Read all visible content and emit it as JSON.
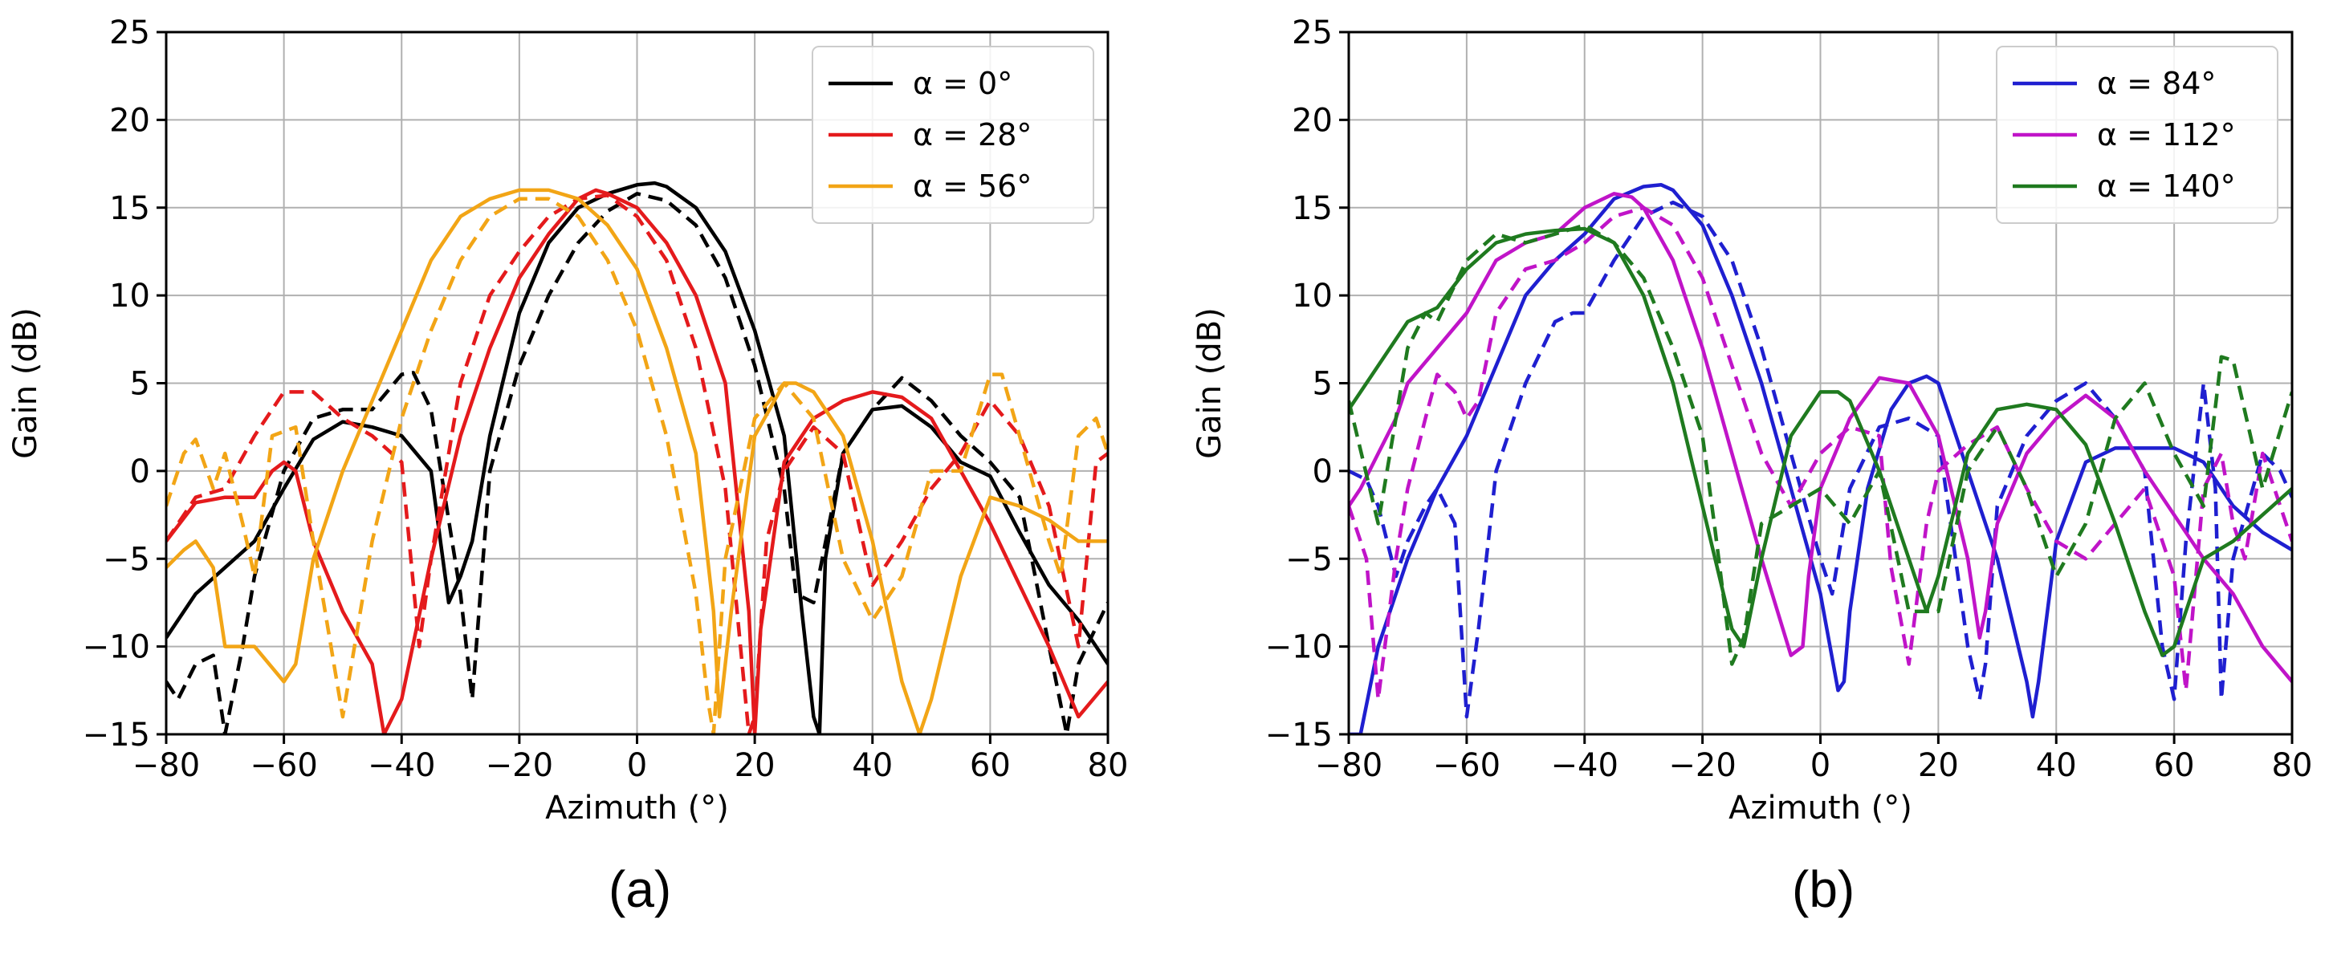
{
  "figure": {
    "panel_labels": [
      "(a)",
      "(b)"
    ]
  },
  "chart_data": [
    {
      "type": "line",
      "panel": "(a)",
      "title": "",
      "xlabel": "Azimuth (°)",
      "ylabel": "Gain (dB)",
      "xlim": [
        -80,
        80
      ],
      "ylim": [
        -15,
        25
      ],
      "xticks": [
        -80,
        -60,
        -40,
        -20,
        0,
        20,
        40,
        60,
        80
      ],
      "yticks": [
        -15,
        -10,
        -5,
        0,
        5,
        10,
        15,
        20,
        25
      ],
      "xtick_labels": [
        "−80",
        "−60",
        "−40",
        "−20",
        "0",
        "20",
        "40",
        "60",
        "80"
      ],
      "ytick_labels": [
        "−15",
        "−10",
        "−5",
        "0",
        "5",
        "10",
        "15",
        "20",
        "25"
      ],
      "grid": true,
      "legend_position": "top-right",
      "legend": [
        "α = 0°",
        "α = 28°",
        "α = 56°"
      ],
      "series": [
        {
          "name": "α = 0°",
          "style": "solid",
          "color": "#000000",
          "x": [
            -80,
            -75,
            -70,
            -65,
            -60,
            -55,
            -50,
            -45,
            -40,
            -35,
            -32,
            -30,
            -28,
            -25,
            -20,
            -15,
            -10,
            -5,
            0,
            3,
            5,
            10,
            15,
            20,
            25,
            28,
            30,
            31,
            32,
            35,
            40,
            45,
            50,
            55,
            60,
            65,
            70,
            75,
            80
          ],
          "y": [
            -9.5,
            -7,
            -5.5,
            -4,
            -1,
            1.8,
            2.8,
            2.5,
            2,
            0,
            -7.5,
            -6,
            -4,
            2,
            9,
            13,
            15,
            15.8,
            16.3,
            16.4,
            16.2,
            15,
            12.5,
            8,
            2,
            -8,
            -14,
            -15,
            -5,
            1,
            3.5,
            3.7,
            2.5,
            0.5,
            -0.3,
            -3.5,
            -6.5,
            -8.5,
            -11
          ]
        },
        {
          "name": "α = 0° (dashed)",
          "style": "dashed",
          "color": "#000000",
          "x": [
            -80,
            -78,
            -75,
            -72,
            -70,
            -67,
            -65,
            -60,
            -55,
            -50,
            -45,
            -40,
            -38,
            -35,
            -30,
            -28,
            -25,
            -20,
            -15,
            -10,
            -5,
            0,
            5,
            10,
            15,
            20,
            25,
            27,
            30,
            35,
            40,
            45,
            50,
            55,
            60,
            65,
            70,
            73,
            75,
            80
          ],
          "y": [
            -12,
            -13,
            -11,
            -10.5,
            -15,
            -10,
            -6,
            0,
            3,
            3.5,
            3.5,
            5.5,
            5.6,
            3.5,
            -7,
            -13,
            0,
            6,
            10,
            13,
            14.8,
            15.8,
            15.4,
            14,
            11,
            6,
            -1,
            -7,
            -7.5,
            1,
            3.5,
            5.3,
            4,
            2,
            0.5,
            -1.5,
            -10,
            -15,
            -11,
            -7.5
          ]
        },
        {
          "name": "α = 28°",
          "style": "solid",
          "color": "#e41a1c",
          "x": [
            -80,
            -75,
            -70,
            -65,
            -62,
            -60,
            -58,
            -55,
            -50,
            -45,
            -43,
            -40,
            -35,
            -30,
            -25,
            -20,
            -15,
            -10,
            -7,
            -5,
            0,
            5,
            10,
            15,
            19,
            20,
            21,
            25,
            30,
            35,
            40,
            45,
            50,
            55,
            60,
            65,
            70,
            75,
            80
          ],
          "y": [
            -4,
            -1.8,
            -1.5,
            -1.5,
            0,
            0.5,
            0,
            -4,
            -8,
            -11,
            -15,
            -13,
            -5,
            2,
            7,
            11,
            13.5,
            15.5,
            16,
            15.8,
            15,
            13,
            10,
            5,
            -8,
            -15,
            -9,
            0.5,
            3,
            4,
            4.5,
            4.2,
            3,
            0,
            -3,
            -6.5,
            -10,
            -14,
            -12
          ]
        },
        {
          "name": "α = 28° (dashed)",
          "style": "dashed",
          "color": "#e41a1c",
          "x": [
            -80,
            -75,
            -70,
            -65,
            -60,
            -55,
            -50,
            -45,
            -40,
            -37,
            -35,
            -30,
            -25,
            -20,
            -15,
            -10,
            -5,
            0,
            5,
            10,
            15,
            19,
            20,
            22,
            25,
            30,
            35,
            40,
            45,
            50,
            55,
            60,
            65,
            70,
            75,
            78,
            80
          ],
          "y": [
            -4,
            -1.5,
            -1,
            2,
            4.5,
            4.5,
            3,
            2,
            0.5,
            -10,
            -5,
            5,
            10,
            12.5,
            14.5,
            15.5,
            15.7,
            14.5,
            12,
            7,
            -1,
            -15,
            -14,
            -4,
            0,
            2.5,
            1,
            -6.5,
            -4,
            -1,
            1,
            4,
            2,
            -2,
            -10,
            0.5,
            1
          ]
        },
        {
          "name": "α = 56°",
          "style": "solid",
          "color": "#f2a516",
          "x": [
            -80,
            -77,
            -75,
            -72,
            -70,
            -65,
            -60,
            -58,
            -55,
            -50,
            -45,
            -40,
            -35,
            -30,
            -25,
            -20,
            -15,
            -10,
            -5,
            0,
            5,
            10,
            13,
            14,
            16,
            20,
            25,
            27,
            30,
            35,
            40,
            45,
            48,
            50,
            55,
            60,
            65,
            70,
            75,
            80
          ],
          "y": [
            -5.5,
            -4.5,
            -4,
            -5.5,
            -10,
            -10,
            -12,
            -11,
            -5,
            0,
            4,
            8,
            12,
            14.5,
            15.5,
            16,
            16,
            15.5,
            14,
            11.5,
            7,
            1,
            -8,
            -14,
            -8,
            2,
            5,
            5,
            4.5,
            2,
            -4,
            -12,
            -15,
            -13,
            -6,
            -1.5,
            -2,
            -2.8,
            -4,
            -4
          ]
        },
        {
          "name": "α = 56° (dashed)",
          "style": "dashed",
          "color": "#f2a516",
          "x": [
            -80,
            -77,
            -75,
            -72,
            -70,
            -67,
            -65,
            -62,
            -58,
            -55,
            -52,
            -50,
            -45,
            -40,
            -35,
            -30,
            -25,
            -20,
            -15,
            -10,
            -5,
            0,
            5,
            10,
            12,
            13,
            15,
            20,
            25,
            30,
            35,
            40,
            45,
            50,
            55,
            60,
            62,
            65,
            70,
            72,
            75,
            78,
            80
          ],
          "y": [
            -2,
            1,
            1.8,
            -1,
            1,
            -3,
            -6,
            2,
            2.5,
            -4,
            -10,
            -14,
            -4,
            3,
            8,
            12,
            14.5,
            15.5,
            15.5,
            14.5,
            12,
            8,
            2,
            -7,
            -13,
            -15,
            -5,
            3,
            5,
            3,
            -5,
            -8.5,
            -6,
            0,
            0,
            5.5,
            5.5,
            2,
            -4,
            -6,
            2,
            3,
            1
          ]
        }
      ]
    },
    {
      "type": "line",
      "panel": "(b)",
      "title": "",
      "xlabel": "Azimuth (°)",
      "ylabel": "Gain (dB)",
      "xlim": [
        -80,
        80
      ],
      "ylim": [
        -15,
        25
      ],
      "xticks": [
        -80,
        -60,
        -40,
        -20,
        0,
        20,
        40,
        60,
        80
      ],
      "yticks": [
        -15,
        -10,
        -5,
        0,
        5,
        10,
        15,
        20,
        25
      ],
      "xtick_labels": [
        "−80",
        "−60",
        "−40",
        "−20",
        "0",
        "20",
        "40",
        "60",
        "80"
      ],
      "ytick_labels": [
        "−15",
        "−10",
        "−5",
        "0",
        "5",
        "10",
        "15",
        "20",
        "25"
      ],
      "grid": true,
      "legend_position": "top-right",
      "legend": [
        "α = 84°",
        "α = 112°",
        "α = 140°"
      ],
      "series": [
        {
          "name": "α = 84°",
          "style": "solid",
          "color": "#1f1fd0",
          "x": [
            -80,
            -78,
            -75,
            -70,
            -65,
            -60,
            -55,
            -50,
            -45,
            -40,
            -35,
            -30,
            -27,
            -25,
            -20,
            -15,
            -10,
            -5,
            0,
            3,
            4,
            5,
            8,
            12,
            15,
            18,
            20,
            25,
            30,
            35,
            36,
            37,
            40,
            45,
            50,
            55,
            60,
            65,
            70,
            75,
            80
          ],
          "y": [
            -15,
            -15,
            -10,
            -5,
            -1,
            2,
            6,
            10,
            12,
            13.5,
            15.5,
            16.2,
            16.3,
            16,
            14,
            10,
            5,
            -1,
            -7,
            -12.5,
            -12,
            -8,
            -1,
            3.5,
            5,
            5.4,
            5,
            0,
            -5,
            -12,
            -14,
            -12,
            -4,
            0.5,
            1.3,
            1.3,
            1.3,
            0.5,
            -2,
            -3.5,
            -4.5
          ]
        },
        {
          "name": "α = 84° (dashed)",
          "style": "dashed",
          "color": "#1f1fd0",
          "x": [
            -80,
            -77,
            -75,
            -72,
            -70,
            -67,
            -65,
            -62,
            -60,
            -58,
            -55,
            -50,
            -45,
            -42,
            -40,
            -35,
            -30,
            -25,
            -20,
            -15,
            -10,
            -5,
            0,
            2,
            5,
            10,
            15,
            20,
            25,
            27,
            28,
            30,
            35,
            40,
            45,
            50,
            55,
            58,
            60,
            62,
            65,
            67,
            68,
            70,
            75,
            78,
            80
          ],
          "y": [
            0,
            -0.5,
            -2,
            -6,
            -4,
            -2,
            -1,
            -3,
            -14,
            -9,
            0,
            5,
            8.5,
            9,
            9,
            12,
            14.5,
            15.3,
            14.5,
            12,
            7,
            1,
            -5,
            -7,
            -1,
            2.5,
            3,
            2,
            -10,
            -13,
            -11,
            -2,
            2,
            4,
            5,
            3,
            0,
            -10,
            -13,
            -4,
            5,
            -1,
            -13,
            -5,
            1,
            0,
            -1.5
          ]
        },
        {
          "name": "α = 112°",
          "style": "solid",
          "color": "#c014c8",
          "x": [
            -80,
            -78,
            -75,
            -72,
            -70,
            -65,
            -60,
            -55,
            -50,
            -45,
            -40,
            -35,
            -32,
            -30,
            -25,
            -20,
            -15,
            -10,
            -5,
            -3,
            -2,
            0,
            5,
            10,
            15,
            20,
            25,
            27,
            28,
            30,
            35,
            40,
            45,
            50,
            55,
            60,
            65,
            70,
            75,
            80
          ],
          "y": [
            -2,
            -1,
            1,
            3,
            5,
            7,
            9,
            12,
            13,
            13.5,
            15,
            15.8,
            15.6,
            15,
            12,
            7,
            1,
            -5,
            -10.5,
            -10,
            -6,
            -1,
            3,
            5.3,
            5,
            2,
            -5,
            -9.5,
            -8,
            -3,
            1,
            3,
            4.3,
            3,
            0,
            -2.5,
            -5,
            -7,
            -10,
            -12
          ]
        },
        {
          "name": "α = 112° (dashed)",
          "style": "dashed",
          "color": "#c014c8",
          "x": [
            -80,
            -77,
            -75,
            -72,
            -70,
            -67,
            -65,
            -62,
            -60,
            -58,
            -55,
            -50,
            -45,
            -40,
            -35,
            -30,
            -25,
            -20,
            -15,
            -10,
            -5,
            0,
            5,
            10,
            12,
            15,
            18,
            20,
            25,
            30,
            35,
            40,
            45,
            50,
            55,
            58,
            60,
            62,
            65,
            68,
            70,
            72,
            75,
            78,
            80
          ],
          "y": [
            -2,
            -5,
            -13,
            -5,
            -1,
            3,
            5.5,
            4.5,
            3,
            4,
            9,
            11.5,
            12,
            13,
            14.5,
            15,
            14,
            11,
            6,
            1,
            -2,
            1,
            2.5,
            2,
            -5.5,
            -11,
            -3,
            0,
            1.5,
            2.5,
            -1,
            -4,
            -5,
            -3,
            -1,
            -4,
            -6,
            -12.5,
            -1,
            1,
            -3,
            -5,
            1,
            -2,
            -4
          ]
        },
        {
          "name": "α = 140°",
          "style": "solid",
          "color": "#1f7a1f",
          "x": [
            -80,
            -75,
            -70,
            -65,
            -60,
            -55,
            -50,
            -45,
            -40,
            -35,
            -30,
            -25,
            -20,
            -15,
            -13,
            -10,
            -5,
            0,
            3,
            5,
            10,
            15,
            18,
            20,
            25,
            30,
            35,
            40,
            45,
            50,
            55,
            58,
            60,
            65,
            70,
            75,
            80
          ],
          "y": [
            3.5,
            6,
            8.5,
            9.3,
            11.5,
            13,
            13.5,
            13.7,
            13.8,
            13,
            10,
            5,
            -2,
            -9,
            -10,
            -5,
            2,
            4.5,
            4.5,
            4,
            0,
            -5,
            -8,
            -6,
            1,
            3.5,
            3.8,
            3.5,
            1.5,
            -3,
            -8,
            -10.5,
            -10,
            -5,
            -4,
            -2.5,
            -1
          ]
        },
        {
          "name": "α = 140° (dashed)",
          "style": "dashed",
          "color": "#1f7a1f",
          "x": [
            -80,
            -75,
            -70,
            -67,
            -65,
            -60,
            -55,
            -50,
            -45,
            -40,
            -35,
            -30,
            -25,
            -20,
            -18,
            -15,
            -13,
            -10,
            -5,
            0,
            5,
            10,
            15,
            20,
            25,
            30,
            35,
            40,
            45,
            50,
            55,
            60,
            65,
            68,
            70,
            75,
            80
          ],
          "y": [
            4,
            -3,
            7,
            9,
            8.5,
            12,
            13.5,
            13,
            13.5,
            14,
            13,
            11,
            7,
            2,
            -3,
            -11,
            -9.5,
            -3,
            -2,
            -1,
            -3,
            0,
            -8,
            -8,
            0,
            2.5,
            -1,
            -6,
            -3,
            3,
            5,
            1,
            -2,
            6.5,
            6.3,
            -1,
            4.5
          ]
        }
      ]
    }
  ]
}
